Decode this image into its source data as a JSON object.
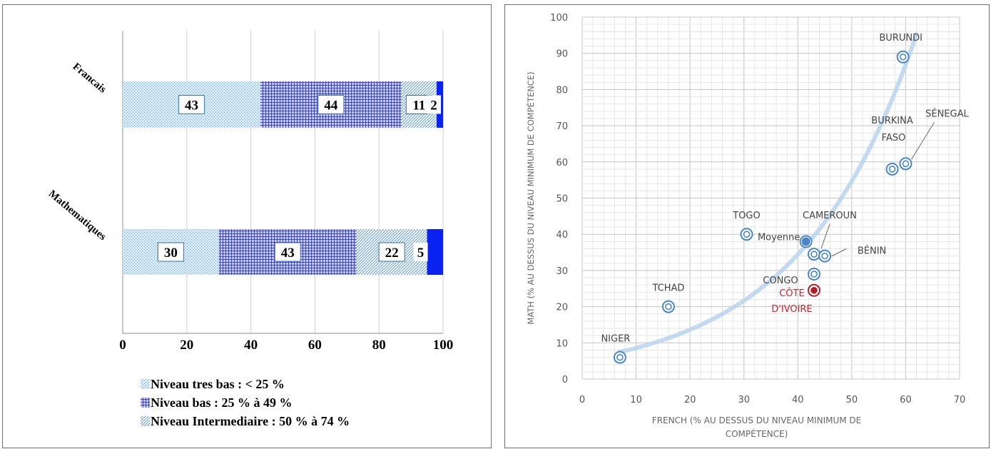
{
  "chart_data": [
    {
      "type": "bar",
      "stacked": true,
      "orientation": "horizontal",
      "categories": [
        "Francais",
        "Mathematiques"
      ],
      "series": [
        {
          "name": "Niveau tres bas : < 25 %",
          "values": [
            43,
            30
          ],
          "color": "#a9d0e6"
        },
        {
          "name": "Niveau bas : 25 % à 49 %",
          "values": [
            44,
            43
          ],
          "color": "#5a63c6"
        },
        {
          "name": "Niveau Intermediaire : 50 % à 74 %",
          "values": [
            11,
            22
          ],
          "color": "#8ab8de"
        },
        {
          "values": [
            2,
            5
          ],
          "color": "#0a22f0"
        }
      ],
      "xlim": [
        0,
        100
      ],
      "xticks": [
        "0",
        "20",
        "40",
        "60",
        "80",
        "100"
      ],
      "grid": true,
      "legend": "bottom"
    },
    {
      "type": "scatter",
      "xlabel": "FRENCH (% AU DESSUS DU NIVEAU MINIMUM DE COMPÉTENCE)",
      "ylabel": "MATH (% AU DESSUS DU NIVEAU MINIMUM DE COMPÉTENCE)",
      "xlim": [
        0,
        70
      ],
      "ylim": [
        0,
        100
      ],
      "xticks": [
        "0",
        "10",
        "20",
        "30",
        "40",
        "50",
        "60",
        "70"
      ],
      "yticks": [
        "0",
        "10",
        "20",
        "30",
        "40",
        "50",
        "60",
        "70",
        "80",
        "90",
        "100"
      ],
      "grid": true,
      "points": [
        {
          "label": "NIGER",
          "x": 7,
          "y": 6
        },
        {
          "label": "TCHAD",
          "x": 16,
          "y": 20
        },
        {
          "label": "TOGO",
          "x": 30.5,
          "y": 40
        },
        {
          "label": "Moyenne",
          "x": 41.5,
          "y": 38,
          "kind": "mean"
        },
        {
          "label": "CAMEROUN",
          "x": 43,
          "y": 34.5
        },
        {
          "label": "BÉNIN",
          "x": 45,
          "y": 34
        },
        {
          "label": "CONGO",
          "x": 43,
          "y": 29
        },
        {
          "label": "CÔTE D'IVOIRE",
          "x": 43,
          "y": 24.5,
          "kind": "highlight"
        },
        {
          "label": "BURKINA FASO",
          "x": 57.5,
          "y": 58
        },
        {
          "label": "SÉNEGAL",
          "x": 60,
          "y": 59.5
        },
        {
          "label": "BURUNDI",
          "x": 59.5,
          "y": 89
        }
      ],
      "point_color": "#4a86c5",
      "highlight_color": "#b0202a",
      "trend_color": "#b9d4ec"
    }
  ]
}
